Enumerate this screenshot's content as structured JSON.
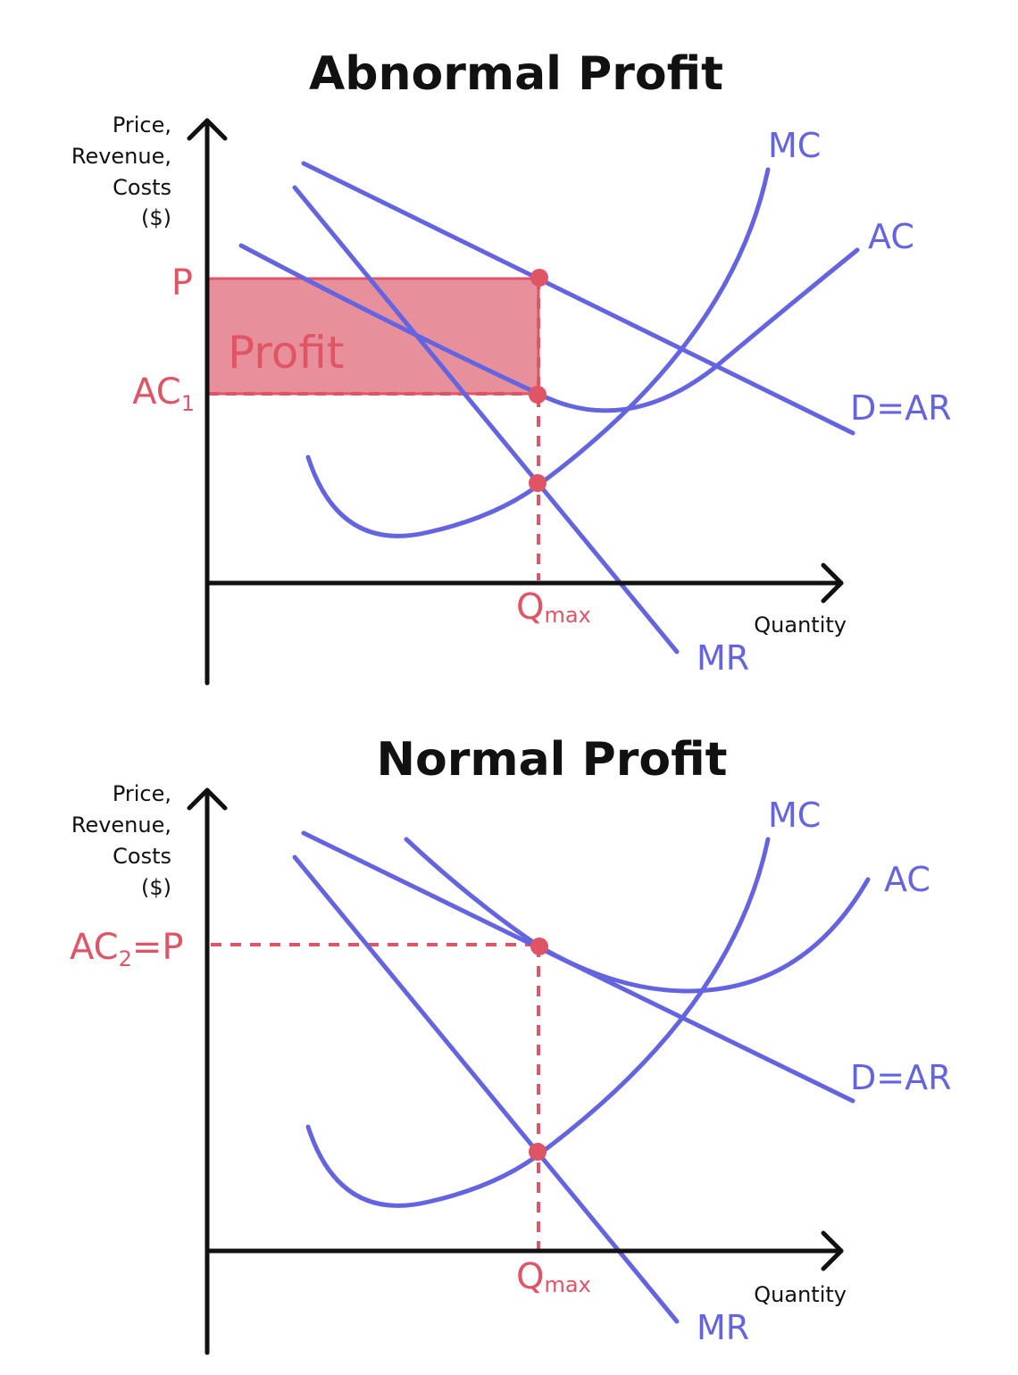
{
  "colors": {
    "curve": "#6464e0",
    "accent": "#e05565",
    "profit_fill": "#e7909b",
    "axis": "#111111"
  },
  "panels": [
    {
      "title": "Abnormal Profit",
      "y_axis_label": [
        "Price,",
        "Revenue,",
        "Costs",
        "($)"
      ],
      "x_axis_label": "Quantity",
      "curves": {
        "mc": "MC",
        "ac": "AC",
        "demand": "D=AR",
        "mr": "MR"
      },
      "price_label": "P",
      "cost_label": {
        "main": "AC",
        "sub": "1"
      },
      "area_label": "Profit",
      "quantity_label": {
        "main": "Q",
        "sub": "max"
      }
    },
    {
      "title": "Normal Profit",
      "y_axis_label": [
        "Price,",
        "Revenue,",
        "Costs",
        "($)"
      ],
      "x_axis_label": "Quantity",
      "curves": {
        "mc": "MC",
        "ac": "AC",
        "demand": "D=AR",
        "mr": "MR"
      },
      "price_label": {
        "a": "AC",
        "sub": "2",
        "b": "=P"
      },
      "quantity_label": {
        "main": "Q",
        "sub": "max"
      }
    }
  ]
}
